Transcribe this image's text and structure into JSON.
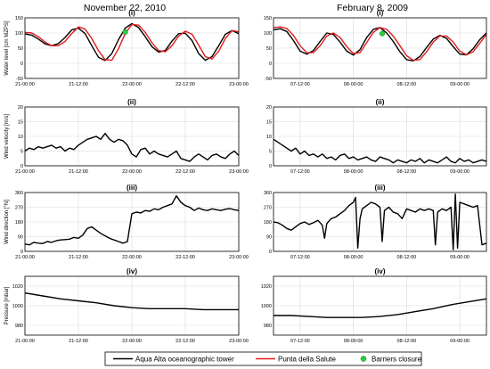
{
  "column_titles": [
    "November 22, 2010",
    "February 8, 2009"
  ],
  "legend": {
    "items": [
      {
        "label": "Aqua Alta oceanographic tower",
        "color": "#000000",
        "marker": "line"
      },
      {
        "label": "Punta della Salute",
        "color": "#e41a1c",
        "marker": "line"
      },
      {
        "label": "Barriers closure",
        "color": "#2ecc40",
        "marker": "dot"
      }
    ]
  },
  "chart_data": [
    {
      "id": "nov-water",
      "type": "line",
      "panel": "(i)",
      "ylabel": "Water level [cm MZPS]",
      "ylim": [
        -50,
        150
      ],
      "yticks": [
        -50,
        0,
        50,
        100,
        150
      ],
      "xlim": [
        0,
        48
      ],
      "xtick_pos": [
        0,
        12,
        24,
        36,
        48
      ],
      "xtick_labels": [
        "21-00:00",
        "21-12:00",
        "22-00:00",
        "22-12:00",
        "23-00:00"
      ],
      "series": [
        {
          "name": "Aqua Alta oceanographic tower",
          "color": "#000000",
          "x": [
            0,
            1.5,
            3,
            4.5,
            6,
            7.5,
            9,
            10.5,
            12,
            13.5,
            15,
            16.5,
            18,
            19.5,
            21,
            22.5,
            24,
            25.5,
            27,
            28.5,
            30,
            31.5,
            33,
            34.5,
            36,
            37.5,
            39,
            40.5,
            42,
            43.5,
            45,
            46.5,
            48
          ],
          "y": [
            97,
            93,
            80,
            64,
            58,
            65,
            85,
            110,
            116,
            98,
            58,
            20,
            9,
            32,
            78,
            116,
            131,
            118,
            88,
            55,
            37,
            42,
            73,
            98,
            99,
            75,
            32,
            10,
            22,
            58,
            96,
            108,
            98
          ]
        },
        {
          "name": "Punta della Salute",
          "color": "#e41a1c",
          "x": [
            0,
            1.5,
            3,
            4.5,
            6,
            7.5,
            9,
            10.5,
            12,
            13.5,
            15,
            16.5,
            18,
            19.5,
            21,
            22.5,
            24,
            25.5,
            27,
            28.5,
            30,
            31.5,
            33,
            34.5,
            36,
            37.5,
            39,
            40.5,
            42,
            43.5,
            45,
            46.5,
            48
          ],
          "y": [
            102,
            100,
            88,
            70,
            58,
            58,
            72,
            98,
            120,
            113,
            82,
            42,
            12,
            10,
            48,
            98,
            128,
            126,
            102,
            68,
            42,
            38,
            58,
            90,
            106,
            96,
            60,
            22,
            14,
            40,
            82,
            108,
            104
          ]
        }
      ],
      "markers": [
        {
          "label": "Barriers closure",
          "x": 22.5,
          "y": 103,
          "color": "#2ecc40"
        }
      ]
    },
    {
      "id": "nov-wind-velocity",
      "type": "line",
      "panel": "(ii)",
      "ylabel": "Wind velocity [m/s]",
      "ylim": [
        0,
        20
      ],
      "yticks": [
        0,
        5,
        10,
        15,
        20
      ],
      "xlim": [
        0,
        48
      ],
      "xtick_pos": [
        0,
        12,
        24,
        36,
        48
      ],
      "xtick_labels": [
        "21-00:00",
        "21-12:00",
        "22-00:00",
        "22-12:00",
        "23-00:00"
      ],
      "series": [
        {
          "name": "",
          "color": "#000000",
          "x": [
            0,
            1,
            2,
            3,
            4,
            5,
            6,
            7,
            8,
            9,
            10,
            11,
            12,
            13,
            14,
            15,
            16,
            17,
            18,
            19,
            20,
            21,
            22,
            23,
            24,
            25,
            26,
            27,
            28,
            29,
            30,
            31,
            32,
            33,
            34,
            35,
            36,
            37,
            38,
            39,
            40,
            41,
            42,
            43,
            44,
            45,
            46,
            47,
            48
          ],
          "y": [
            5,
            6,
            5.5,
            6.5,
            6,
            6.5,
            7,
            6,
            6.5,
            5,
            6,
            5.5,
            7,
            8,
            9,
            9.5,
            10,
            9,
            11,
            9,
            8,
            9,
            8.5,
            7,
            4,
            3,
            5.5,
            6,
            4,
            5,
            4,
            3.5,
            3,
            4,
            5,
            2.5,
            2,
            1.5,
            3,
            4,
            3,
            2,
            3.5,
            4,
            3,
            2.5,
            4,
            5,
            3.5
          ]
        }
      ]
    },
    {
      "id": "nov-wind-direction",
      "type": "line",
      "panel": "(iii)",
      "ylabel": "Wind direction [°N]",
      "ylim": [
        0,
        360
      ],
      "yticks": [
        0,
        90,
        180,
        270,
        360
      ],
      "xlim": [
        0,
        48
      ],
      "xtick_pos": [
        0,
        12,
        24,
        36,
        48
      ],
      "xtick_labels": [
        "21-00:00",
        "21-12:00",
        "22-00:00",
        "22-12:00",
        "23-00:00"
      ],
      "series": [
        {
          "name": "",
          "color": "#000000",
          "x": [
            0,
            1,
            2,
            3,
            4,
            5,
            6,
            7,
            8,
            9,
            10,
            11,
            12,
            13,
            14,
            15,
            16,
            17,
            18,
            19,
            20,
            21,
            22,
            23,
            24,
            25,
            26,
            27,
            28,
            29,
            30,
            31,
            32,
            33,
            34,
            35,
            36,
            37,
            38,
            39,
            40,
            41,
            42,
            43,
            44,
            45,
            46,
            47,
            48
          ],
          "y": [
            45,
            40,
            55,
            50,
            48,
            60,
            55,
            65,
            70,
            72,
            75,
            85,
            80,
            100,
            140,
            150,
            130,
            110,
            95,
            80,
            70,
            60,
            50,
            60,
            230,
            240,
            235,
            250,
            245,
            260,
            255,
            270,
            280,
            290,
            340,
            300,
            280,
            270,
            250,
            265,
            255,
            250,
            260,
            255,
            250,
            258,
            262,
            255,
            250
          ]
        }
      ]
    },
    {
      "id": "nov-pressure",
      "type": "line",
      "panel": "(iv)",
      "ylabel": "Pressure [mbar]",
      "ylim": [
        970,
        1030
      ],
      "yticks": [
        980,
        1000,
        1020
      ],
      "xlim": [
        0,
        48
      ],
      "xtick_pos": [
        0,
        12,
        24,
        36,
        48
      ],
      "xtick_labels": [
        "21-00:00",
        "21-12:00",
        "22-00:00",
        "22-12:00",
        "23-00:00"
      ],
      "series": [
        {
          "name": "",
          "color": "#000000",
          "x": [
            0,
            4,
            8,
            12,
            16,
            20,
            24,
            28,
            32,
            36,
            40,
            44,
            48
          ],
          "y": [
            1013,
            1010,
            1007,
            1005,
            1003,
            1000,
            998,
            997,
            997,
            997,
            996,
            996,
            996
          ]
        }
      ]
    },
    {
      "id": "feb-water",
      "type": "line",
      "panel": "(i)",
      "ylabel": "",
      "ylim": [
        -50,
        150
      ],
      "yticks": [
        -50,
        0,
        50,
        100,
        150
      ],
      "xlim": [
        0,
        48
      ],
      "xtick_pos": [
        6,
        18,
        30,
        42
      ],
      "xtick_labels": [
        "07-12:00",
        "08-00:00",
        "08-12:00",
        "09-00:00"
      ],
      "series": [
        {
          "name": "Aqua Alta oceanographic tower",
          "color": "#000000",
          "x": [
            0,
            1.5,
            3,
            4.5,
            6,
            7.5,
            9,
            10.5,
            12,
            13.5,
            15,
            16.5,
            18,
            19.5,
            21,
            22.5,
            24,
            25.5,
            27,
            28.5,
            30,
            31.5,
            33,
            34.5,
            36,
            37.5,
            39,
            40.5,
            42,
            43.5,
            45,
            46.5,
            48
          ],
          "y": [
            110,
            114,
            105,
            75,
            40,
            30,
            42,
            72,
            100,
            95,
            70,
            40,
            27,
            45,
            85,
            112,
            118,
            100,
            72,
            38,
            12,
            8,
            22,
            52,
            80,
            92,
            82,
            55,
            30,
            28,
            48,
            78,
            100
          ]
        },
        {
          "name": "Punta della Salute",
          "color": "#e41a1c",
          "x": [
            0,
            1.5,
            3,
            4.5,
            6,
            7.5,
            9,
            10.5,
            12,
            13.5,
            15,
            16.5,
            18,
            19.5,
            21,
            22.5,
            24,
            25.5,
            27,
            28.5,
            30,
            31.5,
            33,
            34.5,
            36,
            37.5,
            39,
            40.5,
            42,
            43.5,
            45,
            46.5,
            48
          ],
          "y": [
            118,
            120,
            115,
            92,
            58,
            35,
            35,
            58,
            90,
            100,
            85,
            55,
            32,
            35,
            68,
            102,
            118,
            112,
            90,
            58,
            25,
            10,
            12,
            38,
            70,
            90,
            90,
            70,
            40,
            28,
            38,
            66,
            95
          ]
        }
      ],
      "markers": [
        {
          "label": "Barriers closure",
          "x": 24.5,
          "y": 98,
          "color": "#2ecc40"
        }
      ]
    },
    {
      "id": "feb-wind-velocity",
      "type": "line",
      "panel": "(ii)",
      "ylabel": "",
      "ylim": [
        0,
        20
      ],
      "yticks": [
        0,
        5,
        10,
        15,
        20
      ],
      "xlim": [
        0,
        48
      ],
      "xtick_pos": [
        6,
        18,
        30,
        42
      ],
      "xtick_labels": [
        "07-12:00",
        "08-00:00",
        "08-12:00",
        "09-00:00"
      ],
      "series": [
        {
          "name": "",
          "color": "#000000",
          "x": [
            0,
            1,
            2,
            3,
            4,
            5,
            6,
            7,
            8,
            9,
            10,
            11,
            12,
            13,
            14,
            15,
            16,
            17,
            18,
            19,
            20,
            21,
            22,
            23,
            24,
            25,
            26,
            27,
            28,
            29,
            30,
            31,
            32,
            33,
            34,
            35,
            36,
            37,
            38,
            39,
            40,
            41,
            42,
            43,
            44,
            45,
            46,
            47,
            48
          ],
          "y": [
            9,
            8,
            7,
            6,
            5,
            6,
            4,
            5,
            3.5,
            4,
            3,
            4,
            2.5,
            3,
            2,
            3.5,
            4,
            2.5,
            3,
            2,
            2.5,
            3,
            2,
            1.5,
            3,
            2.5,
            2,
            1,
            2,
            1.5,
            1,
            2,
            1.5,
            2.5,
            1,
            2,
            1.5,
            1,
            2,
            3,
            1.5,
            1,
            2.5,
            1.5,
            2,
            1,
            1.5,
            2,
            1.5
          ]
        }
      ]
    },
    {
      "id": "feb-wind-direction",
      "type": "line",
      "panel": "(iii)",
      "ylabel": "",
      "ylim": [
        0,
        360
      ],
      "yticks": [
        0,
        90,
        180,
        270,
        360
      ],
      "xlim": [
        0,
        48
      ],
      "xtick_pos": [
        6,
        18,
        30,
        42
      ],
      "xtick_labels": [
        "07-12:00",
        "08-00:00",
        "08-12:00",
        "09-00:00"
      ],
      "series": [
        {
          "name": "",
          "color": "#000000",
          "x": [
            0,
            1,
            2,
            3,
            4,
            5,
            6,
            7,
            8,
            9,
            10,
            11,
            11.5,
            12,
            13,
            14,
            15,
            16,
            17,
            18,
            18.5,
            19,
            19.5,
            20,
            21,
            22,
            23,
            24,
            24.5,
            25,
            26,
            27,
            28,
            29,
            30,
            31,
            32,
            33,
            34,
            35,
            36,
            36.5,
            37,
            38,
            39,
            40,
            40.5,
            41,
            41.5,
            42,
            43,
            44,
            45,
            46,
            47,
            48
          ],
          "y": [
            180,
            175,
            160,
            140,
            130,
            150,
            170,
            180,
            165,
            175,
            190,
            160,
            80,
            170,
            200,
            210,
            230,
            250,
            280,
            300,
            330,
            20,
            200,
            260,
            280,
            300,
            290,
            270,
            60,
            250,
            270,
            240,
            230,
            200,
            260,
            250,
            240,
            260,
            250,
            260,
            250,
            40,
            240,
            260,
            250,
            270,
            10,
            350,
            20,
            300,
            290,
            280,
            270,
            280,
            40,
            50
          ]
        }
      ]
    },
    {
      "id": "feb-pressure",
      "type": "line",
      "panel": "(iv)",
      "ylabel": "",
      "ylim": [
        970,
        1030
      ],
      "yticks": [
        980,
        1000,
        1020
      ],
      "xlim": [
        0,
        48
      ],
      "xtick_pos": [
        6,
        18,
        30,
        42
      ],
      "xtick_labels": [
        "07-12:00",
        "08-00:00",
        "08-12:00",
        "09-00:00"
      ],
      "series": [
        {
          "name": "",
          "color": "#000000",
          "x": [
            0,
            4,
            8,
            12,
            16,
            20,
            24,
            28,
            32,
            36,
            40,
            44,
            48
          ],
          "y": [
            990,
            990,
            989,
            988,
            988,
            988,
            989,
            991,
            994,
            997,
            1001,
            1004,
            1007
          ]
        }
      ]
    }
  ]
}
